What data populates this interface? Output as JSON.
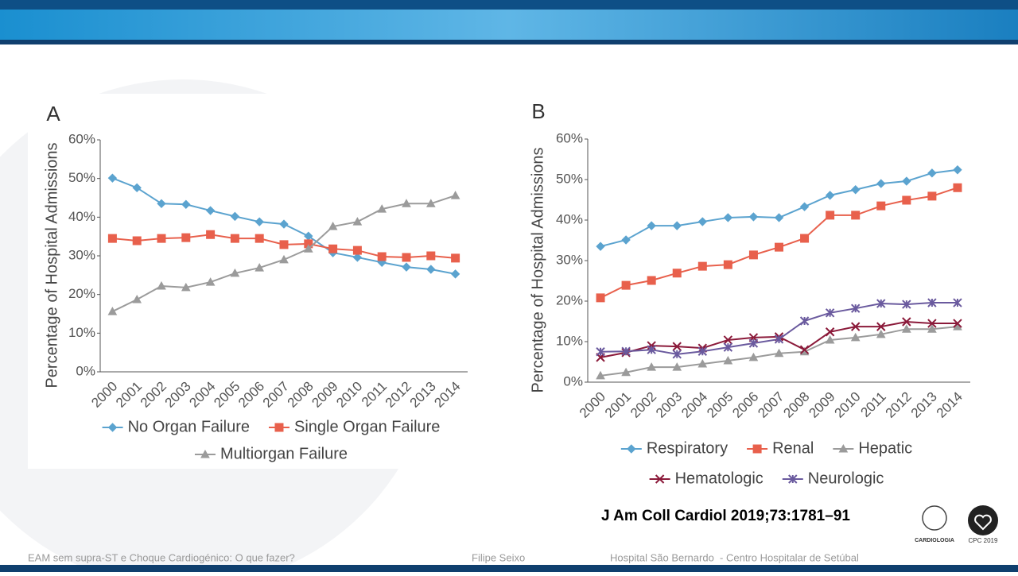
{
  "chart_data": [
    {
      "type": "line",
      "panel": "A",
      "y_label": "Percentage of Hospital Admissions",
      "categories": [
        "2000",
        "2001",
        "2002",
        "2003",
        "2004",
        "2005",
        "2006",
        "2007",
        "2008",
        "2009",
        "2010",
        "2011",
        "2012",
        "2013",
        "2014"
      ],
      "series": [
        {
          "name": "No Organ Failure",
          "color": "#5ba3cf",
          "marker": "diamond",
          "values": [
            50.1,
            47.6,
            43.5,
            43.3,
            41.7,
            40.2,
            38.8,
            38.2,
            35.1,
            30.8,
            29.6,
            28.3,
            27.1,
            26.5,
            25.3
          ]
        },
        {
          "name": "Single Organ Failure",
          "color": "#e8604c",
          "marker": "square",
          "values": [
            34.5,
            33.9,
            34.5,
            34.7,
            35.5,
            34.5,
            34.5,
            32.9,
            33.1,
            31.8,
            31.4,
            29.8,
            29.6,
            30.0,
            29.4
          ]
        },
        {
          "name": "Multiorgan Failure",
          "color": "#9b9b9b",
          "marker": "triangle",
          "values": [
            15.6,
            18.7,
            22.2,
            21.8,
            23.2,
            25.5,
            26.9,
            29.0,
            31.8,
            37.6,
            38.8,
            42.1,
            43.5,
            43.5,
            45.6
          ]
        }
      ],
      "ylim": [
        0,
        60
      ],
      "yticks": [
        {
          "value": 0,
          "label": "0%"
        },
        {
          "value": 10,
          "label": "10%"
        },
        {
          "value": 20,
          "label": "20%"
        },
        {
          "value": 30,
          "label": "30%"
        },
        {
          "value": 40,
          "label": "40%"
        },
        {
          "value": 50,
          "label": "50%"
        },
        {
          "value": 60,
          "label": "60%"
        }
      ],
      "grid": false,
      "legend": "bottom"
    },
    {
      "type": "line",
      "panel": "B",
      "y_label": "Percentage of Hospital Admissions",
      "categories": [
        "2000",
        "2001",
        "2002",
        "2003",
        "2004",
        "2005",
        "2006",
        "2007",
        "2008",
        "2009",
        "2010",
        "2011",
        "2012",
        "2013",
        "2014"
      ],
      "series": [
        {
          "name": "Respiratory",
          "color": "#5ba3cf",
          "marker": "diamond",
          "values": [
            33.5,
            35.1,
            38.6,
            38.6,
            39.6,
            40.6,
            40.8,
            40.6,
            43.3,
            46.1,
            47.5,
            49.0,
            49.6,
            51.6,
            52.4
          ]
        },
        {
          "name": "Renal",
          "color": "#e8604c",
          "marker": "square",
          "values": [
            20.8,
            23.9,
            25.1,
            26.9,
            28.6,
            29.0,
            31.4,
            33.3,
            35.5,
            41.2,
            41.2,
            43.5,
            44.9,
            45.9,
            48.0
          ]
        },
        {
          "name": "Hepatic",
          "color": "#9b9b9b",
          "marker": "triangle",
          "values": [
            1.6,
            2.4,
            3.7,
            3.7,
            4.5,
            5.3,
            6.1,
            7.1,
            7.5,
            10.4,
            11.0,
            11.8,
            13.1,
            13.1,
            13.7
          ]
        },
        {
          "name": "Hematologic",
          "color": "#8b1a3a",
          "marker": "x",
          "values": [
            6.1,
            7.3,
            9.0,
            8.8,
            8.4,
            10.4,
            11.0,
            11.2,
            8.0,
            12.4,
            13.7,
            13.7,
            14.9,
            14.5,
            14.5
          ]
        },
        {
          "name": "Neurologic",
          "color": "#6a5a9e",
          "marker": "asterisk",
          "values": [
            7.5,
            7.6,
            8.0,
            6.9,
            7.6,
            8.6,
            9.6,
            10.6,
            15.1,
            17.1,
            18.2,
            19.4,
            19.2,
            19.6,
            19.6
          ]
        }
      ],
      "ylim": [
        0,
        60
      ],
      "yticks": [
        {
          "value": 0,
          "label": "0%"
        },
        {
          "value": 10,
          "label": "10%"
        },
        {
          "value": 20,
          "label": "20%"
        },
        {
          "value": 30,
          "label": "30%"
        },
        {
          "value": 40,
          "label": "40%"
        },
        {
          "value": 50,
          "label": "50%"
        },
        {
          "value": 60,
          "label": "60%"
        }
      ],
      "grid": false,
      "legend": "bottom"
    }
  ],
  "citation": "J Am Coll Cardiol 2019;73:1781–91",
  "footer": {
    "left": "EAM sem supra-ST e Choque Cardiogénico: O que fazer?",
    "center": "Filipe Seixo",
    "right": "Hospital São Bernardo  - Centro Hospitalar de Setúbal"
  },
  "logos": {
    "spc": "CARDIOLOGIA",
    "cpc": "CPC 2019"
  }
}
